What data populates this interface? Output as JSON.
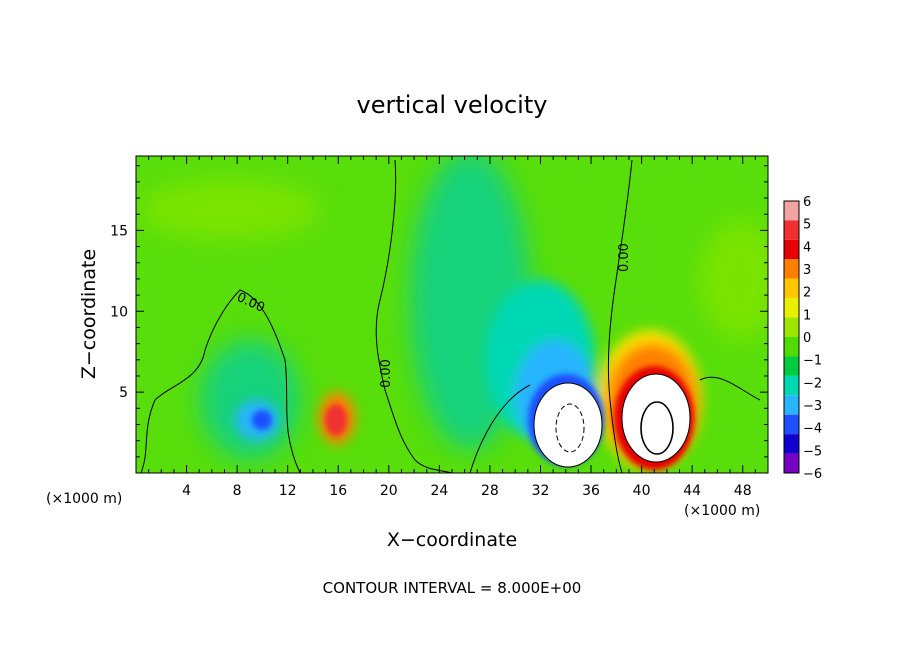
{
  "chart_data": {
    "type": "heatmap",
    "title": "vertical velocity",
    "xlabel": "X−coordinate",
    "ylabel": "Z−coordinate",
    "x_unit_left": "(×1000 m)",
    "x_unit_right": "(×1000 m)",
    "footer": "CONTOUR INTERVAL = 8.000E+00",
    "xlim": [
      0,
      50
    ],
    "ylim": [
      0,
      19.6
    ],
    "xticks": [
      "4",
      "8",
      "12",
      "16",
      "20",
      "24",
      "28",
      "32",
      "36",
      "40",
      "44",
      "48"
    ],
    "xtick_values": [
      4,
      8,
      12,
      16,
      20,
      24,
      28,
      32,
      36,
      40,
      44,
      48
    ],
    "yticks": [
      "5",
      "10",
      "15"
    ],
    "ytick_values": [
      5,
      10,
      15
    ],
    "colorbar": {
      "labels": [
        "6",
        "5",
        "4",
        "3",
        "2",
        "1",
        "0",
        "−1",
        "−2",
        "−3",
        "−4",
        "−5",
        "−6"
      ],
      "levels": [
        6,
        5,
        4,
        3,
        2,
        1,
        0,
        -1,
        -2,
        -3,
        -4,
        -5,
        -6
      ],
      "colors": [
        "#f4a3a3",
        "#f03030",
        "#e60000",
        "#ff8000",
        "#ffc800",
        "#e6f000",
        "#9ee600",
        "#50dc00",
        "#00cc40",
        "#00d8b4",
        "#28b4ff",
        "#1e50ff",
        "#1000d0",
        "#7800c0"
      ]
    },
    "contour_labels": [
      "0.00",
      "0.00",
      "0.00"
    ],
    "features": [
      {
        "kind": "updraft",
        "x": 40.5,
        "z": 3.3,
        "peak": 8
      },
      {
        "kind": "downdraft",
        "x": 34,
        "z": 3.0,
        "peak": -8
      },
      {
        "kind": "updraft",
        "x": 15.6,
        "z": 3.3,
        "peak": 5
      },
      {
        "kind": "downdraft",
        "x": 9.5,
        "z": 3.3,
        "peak": -3.5
      }
    ]
  }
}
